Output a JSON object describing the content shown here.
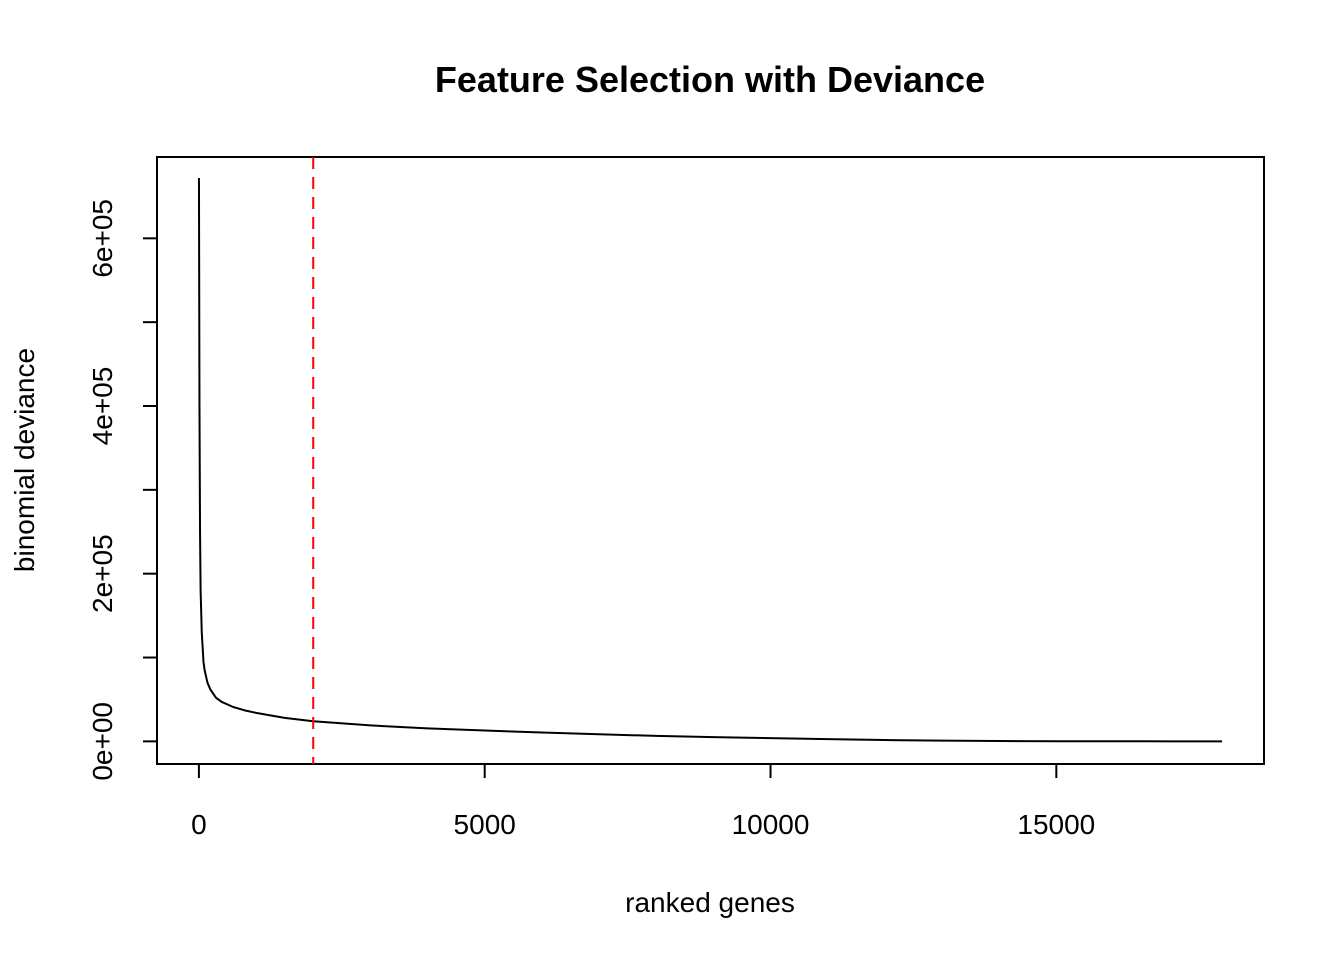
{
  "chart_data": {
    "type": "line",
    "title": "Feature Selection with Deviance",
    "xlabel": "ranked genes",
    "ylabel": "binomial deviance",
    "xlim": [
      -733,
      18633
    ],
    "ylim": [
      -27000,
      697000
    ],
    "x_ticks": [
      {
        "value": 0,
        "label": "0"
      },
      {
        "value": 5000,
        "label": "5000"
      },
      {
        "value": 10000,
        "label": "10000"
      },
      {
        "value": 15000,
        "label": "15000"
      }
    ],
    "y_ticks": [
      {
        "value": 0,
        "label": "0e+00"
      },
      {
        "value": 100000,
        "label": ""
      },
      {
        "value": 200000,
        "label": "2e+05"
      },
      {
        "value": 300000,
        "label": ""
      },
      {
        "value": 400000,
        "label": "4e+05"
      },
      {
        "value": 500000,
        "label": ""
      },
      {
        "value": 600000,
        "label": "6e+05"
      }
    ],
    "series": [
      {
        "color": "#000000",
        "x": [
          1,
          10,
          20,
          30,
          50,
          80,
          100,
          150,
          200,
          300,
          400,
          600,
          800,
          1000,
          1500,
          2000,
          3000,
          4000,
          5000,
          6000,
          7000,
          8000,
          9000,
          10000,
          11000,
          12000,
          13000,
          14000,
          15000,
          16000,
          17000,
          17900
        ],
        "y": [
          672000,
          400000,
          250000,
          180000,
          130000,
          95000,
          85000,
          70000,
          62000,
          52000,
          47000,
          41000,
          37000,
          34000,
          28000,
          24000,
          19000,
          15500,
          13000,
          10500,
          8500,
          6500,
          5000,
          3800,
          2600,
          1600,
          900,
          400,
          200,
          100,
          40,
          0
        ]
      }
    ],
    "vline": {
      "x": 2000,
      "color": "#ff0000",
      "style": "dashed"
    },
    "grid": false,
    "legend": "none"
  }
}
